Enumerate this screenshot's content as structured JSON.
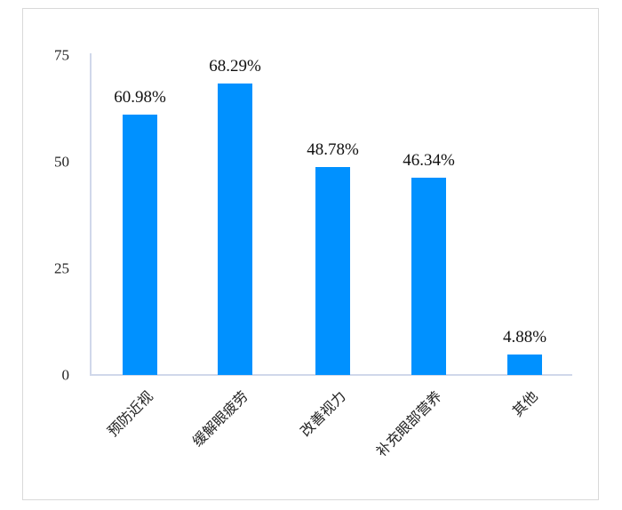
{
  "chart_data": {
    "type": "bar",
    "title": "",
    "xlabel": "",
    "ylabel": "",
    "ylim": [
      0,
      75
    ],
    "yticks": [
      0,
      25,
      50,
      75
    ],
    "grid": false,
    "legend": null,
    "bar_color": "#0091ff",
    "categories": [
      "预防近视",
      "缓解眼疲劳",
      "改善视力",
      "补充眼部营养",
      "其他"
    ],
    "values": [
      60.98,
      68.29,
      48.78,
      46.34,
      4.88
    ],
    "data_labels": [
      "60.98%",
      "68.29%",
      "48.78%",
      "46.34%",
      "4.88%"
    ]
  },
  "axis": {
    "y_ticks": [
      "75",
      "50",
      "25",
      "0"
    ]
  }
}
